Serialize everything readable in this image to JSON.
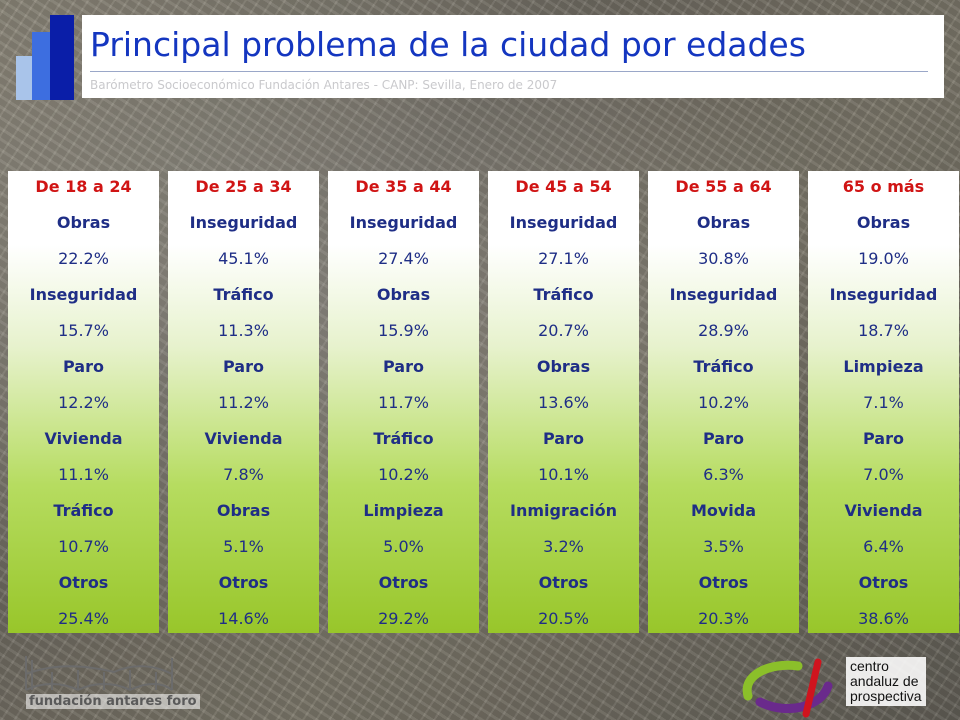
{
  "header": {
    "title": "Principal problema de la ciudad por edades",
    "subtitle": "Barómetro Socioeconómico Fundación Antares - CANP: Sevilla, Enero de 2007",
    "title_color": "#1436c0"
  },
  "columns": [
    {
      "heading": "De 18 a 24",
      "rows": [
        {
          "label": "Obras",
          "value": "22.2%"
        },
        {
          "label": "Inseguridad",
          "value": "15.7%"
        },
        {
          "label": "Paro",
          "value": "12.2%"
        },
        {
          "label": "Vivienda",
          "value": "11.1%"
        },
        {
          "label": "Tráfico",
          "value": "10.7%"
        },
        {
          "label": "Otros",
          "value": "25.4%"
        }
      ]
    },
    {
      "heading": "De 25 a 34",
      "rows": [
        {
          "label": "Inseguridad",
          "value": "45.1%"
        },
        {
          "label": "Tráfico",
          "value": "11.3%"
        },
        {
          "label": "Paro",
          "value": "11.2%"
        },
        {
          "label": "Vivienda",
          "value": "7.8%"
        },
        {
          "label": "Obras",
          "value": "5.1%"
        },
        {
          "label": "Otros",
          "value": "14.6%"
        }
      ]
    },
    {
      "heading": "De 35 a 44",
      "rows": [
        {
          "label": "Inseguridad",
          "value": "27.4%"
        },
        {
          "label": "Obras",
          "value": "15.9%"
        },
        {
          "label": "Paro",
          "value": "11.7%"
        },
        {
          "label": "Tráfico",
          "value": "10.2%"
        },
        {
          "label": "Limpieza",
          "value": "5.0%"
        },
        {
          "label": "Otros",
          "value": "29.2%"
        }
      ]
    },
    {
      "heading": "De 45 a 54",
      "rows": [
        {
          "label": "Inseguridad",
          "value": "27.1%"
        },
        {
          "label": "Tráfico",
          "value": "20.7%"
        },
        {
          "label": "Obras",
          "value": "13.6%"
        },
        {
          "label": "Paro",
          "value": "10.1%"
        },
        {
          "label": "Inmigración",
          "value": "3.2%"
        },
        {
          "label": "Otros",
          "value": "20.5%"
        }
      ]
    },
    {
      "heading": "De 55 a 64",
      "rows": [
        {
          "label": "Obras",
          "value": "30.8%"
        },
        {
          "label": "Inseguridad",
          "value": "28.9%"
        },
        {
          "label": "Tráfico",
          "value": "10.2%"
        },
        {
          "label": "Paro",
          "value": "6.3%"
        },
        {
          "label": "Movida",
          "value": "3.5%"
        },
        {
          "label": "Otros",
          "value": "20.3%"
        }
      ]
    },
    {
      "heading": "65 o más",
      "rows": [
        {
          "label": "Obras",
          "value": "19.0%"
        },
        {
          "label": "Inseguridad",
          "value": "18.7%"
        },
        {
          "label": "Limpieza",
          "value": "7.1%"
        },
        {
          "label": "Paro",
          "value": "7.0%"
        },
        {
          "label": "Vivienda",
          "value": "6.4%"
        },
        {
          "label": "Otros",
          "value": "38.6%"
        }
      ]
    }
  ],
  "footer": {
    "left_logo_text": "fundación antares foro",
    "right_logo_lines": [
      "centro",
      "andaluz de",
      "prospectiva"
    ]
  },
  "colors": {
    "heading": "#d01414",
    "cell_text": "#1f2e86",
    "gradient_green": "#98c62a"
  }
}
